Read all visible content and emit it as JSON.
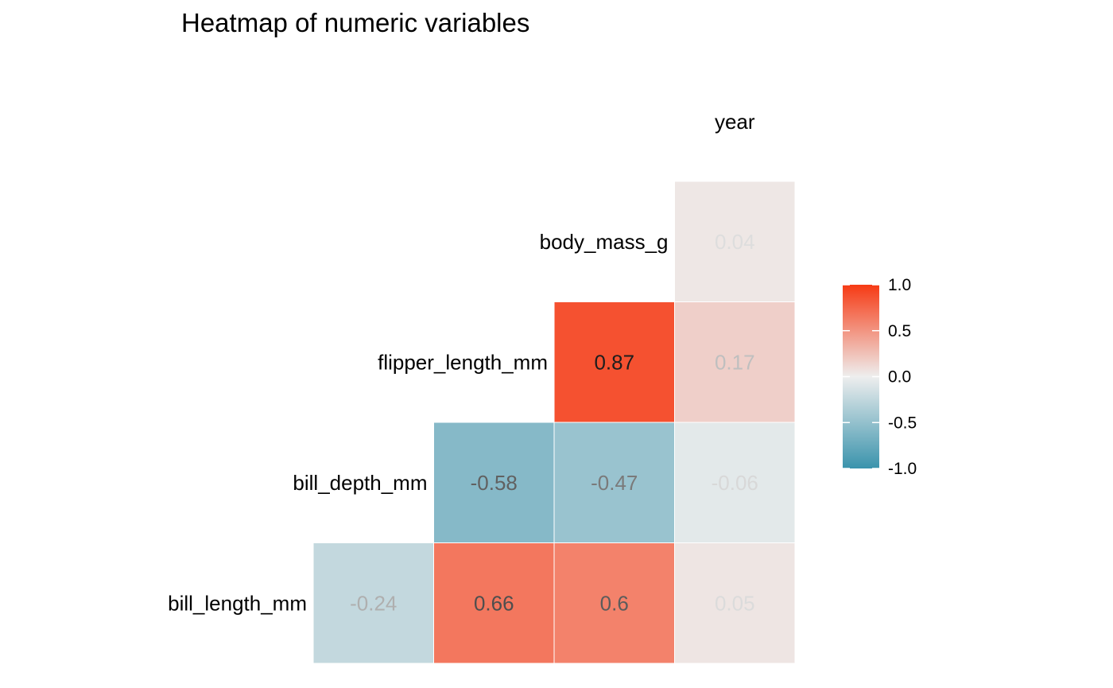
{
  "chart_data": {
    "type": "heatmap",
    "title": "Heatmap of numeric variables",
    "variables": [
      "bill_length_mm",
      "bill_depth_mm",
      "flipper_length_mm",
      "body_mass_g",
      "year"
    ],
    "cells": [
      {
        "row": "bill_depth_mm",
        "col": "bill_length_mm",
        "value": -0.24,
        "label": "-0.24"
      },
      {
        "row": "flipper_length_mm",
        "col": "bill_length_mm",
        "value": 0.66,
        "label": "0.66"
      },
      {
        "row": "flipper_length_mm",
        "col": "bill_depth_mm",
        "value": -0.58,
        "label": "-0.58"
      },
      {
        "row": "body_mass_g",
        "col": "bill_length_mm",
        "value": 0.6,
        "label": "0.6"
      },
      {
        "row": "body_mass_g",
        "col": "bill_depth_mm",
        "value": -0.47,
        "label": "-0.47"
      },
      {
        "row": "body_mass_g",
        "col": "flipper_length_mm",
        "value": 0.87,
        "label": "0.87"
      },
      {
        "row": "year",
        "col": "bill_length_mm",
        "value": 0.05,
        "label": "0.05"
      },
      {
        "row": "year",
        "col": "bill_depth_mm",
        "value": -0.06,
        "label": "-0.06"
      },
      {
        "row": "year",
        "col": "flipper_length_mm",
        "value": 0.17,
        "label": "0.17"
      },
      {
        "row": "year",
        "col": "body_mass_g",
        "value": 0.04,
        "label": "0.04"
      }
    ],
    "scale": {
      "limits": [
        -1,
        1
      ],
      "ticks": [
        1,
        0.5,
        0,
        -0.5,
        -1
      ],
      "tick_labels": [
        "1.0",
        "0.5",
        "0.0",
        "-0.5",
        "-1.0"
      ],
      "low_color": "#3A93AC",
      "mid_color": "#EEEEEE",
      "high_color": "#F63A14"
    },
    "legend_position": "right",
    "grid": false
  }
}
